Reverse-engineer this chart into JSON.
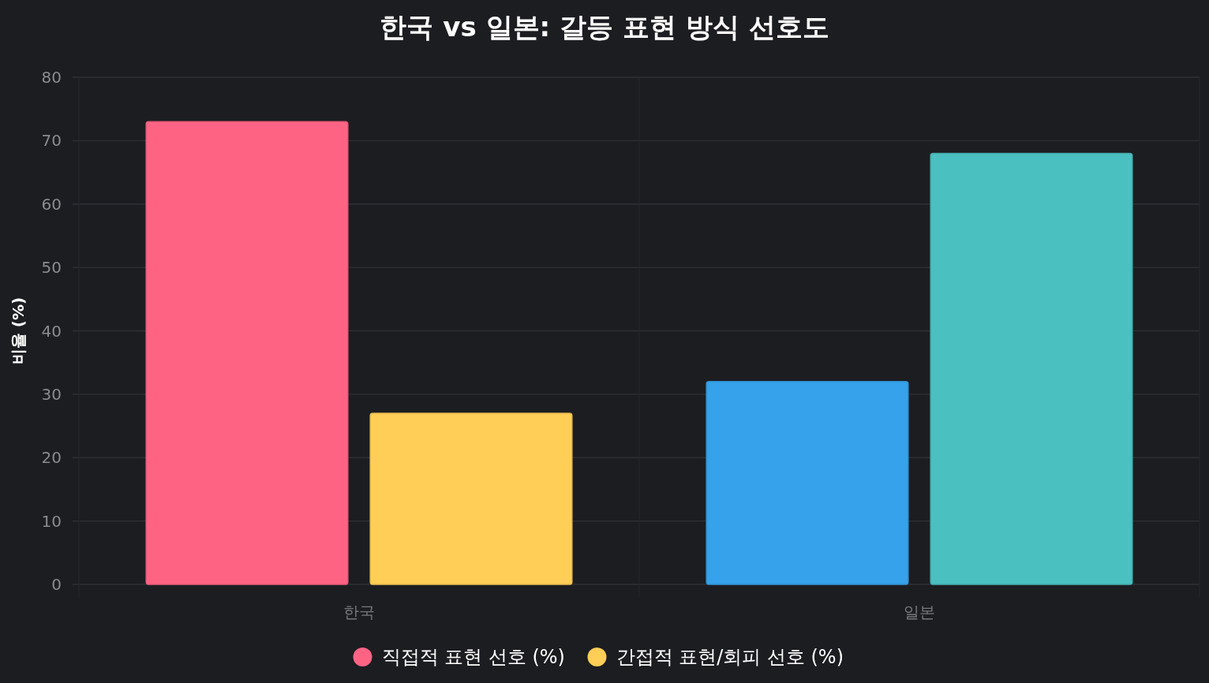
{
  "chart_data": {
    "type": "bar",
    "title": "한국 vs 일본: 갈등 표현 방식 선호도",
    "ylabel": "비율 (%)",
    "categories": [
      "한국",
      "일본"
    ],
    "series": [
      {
        "name": "직접적 표현 선호 (%)",
        "color": "#ff6384",
        "colors": [
          "#ff6384",
          "#36a2eb"
        ],
        "values": [
          73,
          32
        ]
      },
      {
        "name": "간접적 표현/회피 선호 (%)",
        "color": "#ffce56",
        "colors": [
          "#ffce56",
          "#4bc0c0"
        ],
        "values": [
          27,
          68
        ]
      }
    ],
    "ylim": [
      0,
      80
    ],
    "yticks": [
      0,
      10,
      20,
      30,
      40,
      50,
      60,
      70,
      80
    ],
    "grid": true,
    "legend": "bottom"
  }
}
